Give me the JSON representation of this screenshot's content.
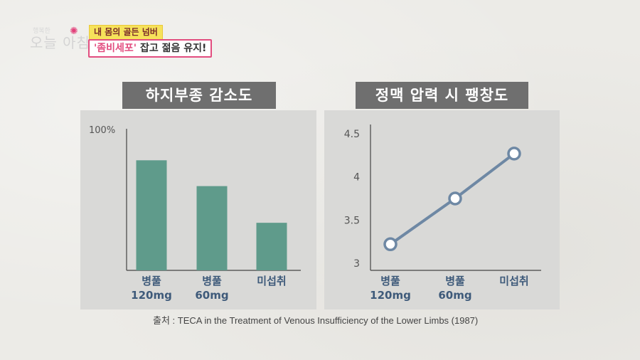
{
  "program": {
    "logo_small": "행복한",
    "logo_main": "오늘 아침",
    "caption_top": "내 몸의 골든 넘버",
    "caption_highlight": "'좀비세포'",
    "caption_rest": "잡고 젊음 유지!"
  },
  "colors": {
    "bar": "#5f9b8b",
    "line": "#6e88a4",
    "point_fill": "#ffffff",
    "axis": "#444444",
    "tick_text": "#555555",
    "category_text": "#3e5a7a"
  },
  "source_text": "출처 : TECA in the Treatment of Venous Insufficiency of the Lower Limbs (1987)",
  "chart_data": [
    {
      "type": "bar",
      "title": "하지부종 감소도",
      "categories": [
        [
          "병풀",
          "120mg"
        ],
        [
          "병풀",
          "60mg"
        ],
        [
          "미섭취"
        ]
      ],
      "values": [
        81,
        62,
        35
      ],
      "yticks": [
        "100%"
      ],
      "ylim": [
        0,
        100
      ],
      "grid": false
    },
    {
      "type": "line",
      "title": "정맥 압력 시 팽창도",
      "categories": [
        [
          "병풀",
          "120mg"
        ],
        [
          "병풀",
          "60mg"
        ],
        [
          "미섭취"
        ]
      ],
      "values": [
        3.22,
        3.75,
        4.27
      ],
      "yticks": [
        "3",
        "3.5",
        "4",
        "4.5"
      ],
      "ylim": [
        3,
        4.5
      ],
      "grid": false
    }
  ]
}
